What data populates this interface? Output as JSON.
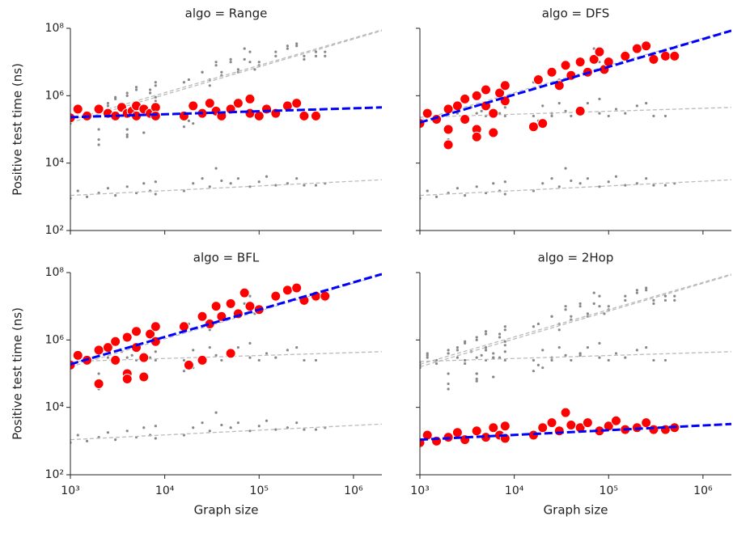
{
  "chart_data": [
    {
      "type": "scatter",
      "title": "algo = Range",
      "ylabel": "Positive test time (ns)",
      "log_x": true,
      "log_y": true,
      "xlim": [
        1000,
        2000000
      ],
      "ylim": [
        100,
        100000000
      ],
      "xticks": [
        1000,
        10000,
        100000,
        1000000
      ],
      "yticks": [
        {
          "value": 100,
          "label": "10²"
        },
        {
          "value": 10000,
          "label": "10⁴"
        },
        {
          "value": 1000000,
          "label": "10⁶"
        },
        {
          "value": 100000000,
          "label": "10⁸"
        }
      ],
      "series": [
        {
          "color": "#ff0000",
          "x": [
            1000,
            1200,
            1500,
            2000,
            2500,
            3000,
            3500,
            4000,
            4500,
            5000,
            5000,
            6000,
            7000,
            8000,
            8000,
            16000,
            20000,
            25000,
            30000,
            35000,
            40000,
            50000,
            60000,
            80000,
            80000,
            100000,
            120000,
            150000,
            200000,
            250000,
            300000,
            400000
          ],
          "values": [
            220000,
            400000,
            250000,
            400000,
            300000,
            250000,
            450000,
            300000,
            350000,
            250000,
            500000,
            400000,
            300000,
            450000,
            250000,
            250000,
            500000,
            300000,
            600000,
            350000,
            250000,
            400000,
            600000,
            800000,
            300000,
            250000,
            400000,
            300000,
            500000,
            600000,
            250000,
            250000
          ]
        }
      ],
      "fit": {
        "color": "#0000ff",
        "x": [
          1000,
          2000000
        ],
        "values": [
          230000,
          450000
        ]
      }
    },
    {
      "type": "scatter",
      "title": "algo = DFS",
      "log_x": true,
      "log_y": true,
      "xlim": [
        1000,
        2000000
      ],
      "ylim": [
        100,
        100000000
      ],
      "xticks": [
        1000,
        10000,
        100000,
        1000000
      ],
      "yticks": [
        100,
        10000,
        1000000,
        100000000
      ],
      "series": [
        {
          "color": "#ff0000",
          "x": [
            1000,
            1200,
            1500,
            2000,
            2000,
            2000,
            2500,
            3000,
            3000,
            4000,
            4000,
            4000,
            5000,
            5000,
            6000,
            6000,
            7000,
            8000,
            8000,
            16000,
            18000,
            20000,
            25000,
            30000,
            35000,
            40000,
            50000,
            50000,
            60000,
            70000,
            80000,
            90000,
            100000,
            150000,
            200000,
            250000,
            300000,
            400000,
            500000
          ],
          "values": [
            150000,
            300000,
            200000,
            400000,
            100000,
            35000,
            500000,
            200000,
            800000,
            1000000,
            100000,
            60000,
            500000,
            1500000,
            300000,
            80000,
            1200000,
            2000000,
            700000,
            120000,
            3000000,
            150000,
            5000000,
            2000000,
            8000000,
            4000000,
            10000000,
            350000,
            5000000,
            12000000,
            20000000,
            6000000,
            10000000,
            15000000,
            25000000,
            30000000,
            12000000,
            15000000,
            15000000
          ]
        }
      ],
      "fit": {
        "color": "#0000ff",
        "x": [
          1000,
          2000000
        ],
        "values": [
          160000,
          85000000
        ]
      }
    },
    {
      "type": "scatter",
      "title": "algo = BFL",
      "xlabel": "Graph size",
      "ylabel": "Positive test time (ns)",
      "log_x": true,
      "log_y": true,
      "xlim": [
        1000,
        2000000
      ],
      "ylim": [
        100,
        100000000
      ],
      "xticks": [
        {
          "value": 1000,
          "label": "10³"
        },
        {
          "value": 10000,
          "label": "10⁴"
        },
        {
          "value": 100000,
          "label": "10⁵"
        },
        {
          "value": 1000000,
          "label": "10⁶"
        }
      ],
      "yticks": [
        {
          "value": 100,
          "label": "10²"
        },
        {
          "value": 10000,
          "label": "10⁴"
        },
        {
          "value": 1000000,
          "label": "10⁶"
        },
        {
          "value": 100000000,
          "label": "10⁸"
        }
      ],
      "series": [
        {
          "color": "#ff0000",
          "x": [
            1000,
            1200,
            1500,
            2000,
            2000,
            2500,
            3000,
            3000,
            4000,
            4000,
            4000,
            5000,
            5000,
            6000,
            6000,
            7000,
            8000,
            8000,
            16000,
            18000,
            25000,
            25000,
            30000,
            35000,
            40000,
            50000,
            50000,
            60000,
            70000,
            80000,
            100000,
            150000,
            200000,
            250000,
            300000,
            400000,
            500000
          ],
          "values": [
            180000,
            350000,
            250000,
            500000,
            50000,
            600000,
            250000,
            900000,
            1200000,
            100000,
            70000,
            600000,
            1800000,
            300000,
            80000,
            1500000,
            2500000,
            900000,
            2500000,
            180000,
            250000,
            5000000,
            3000000,
            10000000,
            5000000,
            12000000,
            400000,
            6000000,
            25000000,
            10000000,
            8000000,
            20000000,
            30000000,
            35000000,
            15000000,
            20000000,
            20000000
          ]
        }
      ],
      "fit": {
        "color": "#0000ff",
        "x": [
          1000,
          2000000
        ],
        "values": [
          190000,
          90000000
        ]
      }
    },
    {
      "type": "scatter",
      "title": "algo = 2Hop",
      "xlabel": "Graph size",
      "log_x": true,
      "log_y": true,
      "xlim": [
        1000,
        2000000
      ],
      "ylim": [
        100,
        100000000
      ],
      "xticks": [
        {
          "value": 1000,
          "label": "10³"
        },
        {
          "value": 10000,
          "label": "10⁴"
        },
        {
          "value": 100000,
          "label": "10⁵"
        },
        {
          "value": 1000000,
          "label": "10⁶"
        }
      ],
      "yticks": [
        100,
        10000,
        1000000,
        100000000
      ],
      "series": [
        {
          "color": "#ff0000",
          "x": [
            1000,
            1200,
            1500,
            2000,
            2500,
            3000,
            4000,
            5000,
            6000,
            7000,
            8000,
            8000,
            16000,
            20000,
            25000,
            30000,
            35000,
            40000,
            50000,
            60000,
            80000,
            100000,
            120000,
            150000,
            200000,
            250000,
            300000,
            400000,
            500000
          ],
          "values": [
            900,
            1500,
            1000,
            1300,
            1800,
            1100,
            2000,
            1300,
            2500,
            1500,
            2800,
            1200,
            1500,
            2500,
            3500,
            2000,
            7000,
            3000,
            2500,
            3500,
            2000,
            2800,
            4000,
            2200,
            2500,
            3500,
            2200,
            2200,
            2500
          ]
        }
      ],
      "fit": {
        "color": "#0000ff",
        "x": [
          1000,
          2000000
        ],
        "values": [
          1100,
          3200
        ]
      }
    }
  ]
}
